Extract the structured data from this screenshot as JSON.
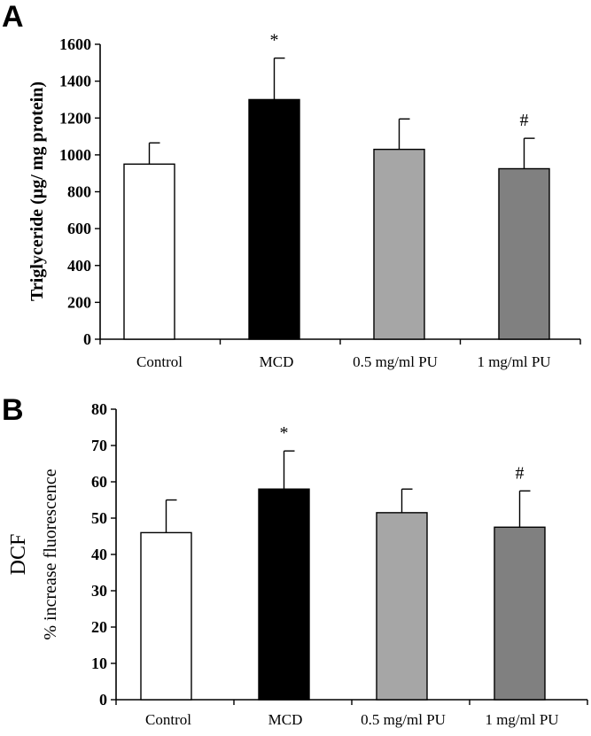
{
  "chart_data": [
    {
      "panel": "A",
      "type": "bar",
      "title": "",
      "ylabel": "Triglyceride (µg/ mg protein)",
      "xlabel": "",
      "categories": [
        "Control",
        "MCD",
        "0.5 mg/ml PU",
        "1 mg/ml PU"
      ],
      "values": [
        950,
        1300,
        1030,
        925
      ],
      "errors": [
        115,
        225,
        165,
        165
      ],
      "colors": [
        "#ffffff",
        "#000000",
        "#a6a6a6",
        "#808080"
      ],
      "annotations": [
        "",
        "*",
        "",
        "#"
      ],
      "ylim": [
        0,
        1600
      ],
      "yticks": [
        0,
        200,
        400,
        600,
        800,
        1000,
        1200,
        1400,
        1600
      ],
      "grid": false
    },
    {
      "panel": "B",
      "type": "bar",
      "title": "",
      "ylabel_main": "DCF",
      "ylabel": "% increase fluorescence",
      "xlabel": "",
      "categories": [
        "Control",
        "MCD",
        "0.5 mg/ml PU",
        "1 mg/ml PU"
      ],
      "values": [
        46,
        58,
        51.5,
        47.5
      ],
      "errors": [
        9,
        10.5,
        6.5,
        10
      ],
      "colors": [
        "#ffffff",
        "#000000",
        "#a6a6a6",
        "#808080"
      ],
      "annotations": [
        "",
        "*",
        "",
        "#"
      ],
      "ylim": [
        0,
        80
      ],
      "yticks": [
        0,
        10,
        20,
        30,
        40,
        50,
        60,
        70,
        80
      ],
      "grid": false
    }
  ]
}
